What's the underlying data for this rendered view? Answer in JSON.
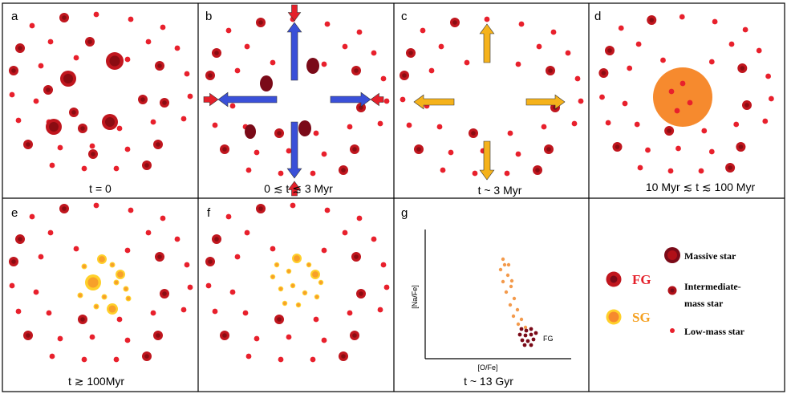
{
  "panels": [
    {
      "id": "a",
      "letter": "a",
      "caption": "t = 0"
    },
    {
      "id": "b",
      "letter": "b",
      "caption": "0 ≲ t ≲ 3 Myr"
    },
    {
      "id": "c",
      "letter": "c",
      "caption": "t ~ 3 Myr"
    },
    {
      "id": "d",
      "letter": "d",
      "caption": "10 Myr ≲ t ≲ 100 Myr"
    },
    {
      "id": "e",
      "letter": "e",
      "caption": "t ≳ 100Myr"
    },
    {
      "id": "f",
      "letter": "f",
      "caption": ""
    },
    {
      "id": "g",
      "letter": "g",
      "caption": "t ~ 13 Gyr"
    }
  ],
  "plot": {
    "xlabel": "[O/Fe]",
    "ylabel": "[Na/Fe]",
    "fg_label": "FG"
  },
  "legend": {
    "fg": "FG",
    "sg": "SG",
    "massive": "Massive star",
    "intermediate_1": "Intermediate-",
    "intermediate_2": "mass star",
    "low": "Low-mass star"
  },
  "colors": {
    "low": "#e8202c",
    "massive_fill": "#c0161e",
    "massive_core": "#8a0c12",
    "dark": "#7a0a18",
    "sg_fill": "#f7a02a",
    "sg_edge": "#ffd02a",
    "orange_cloud": "#f68a2e",
    "blue_arrow": "#3a50d8",
    "yellow_arrow": "#f5b21b",
    "red_arrow": "#e4202a",
    "sg_plot": "#f39a4c"
  }
}
